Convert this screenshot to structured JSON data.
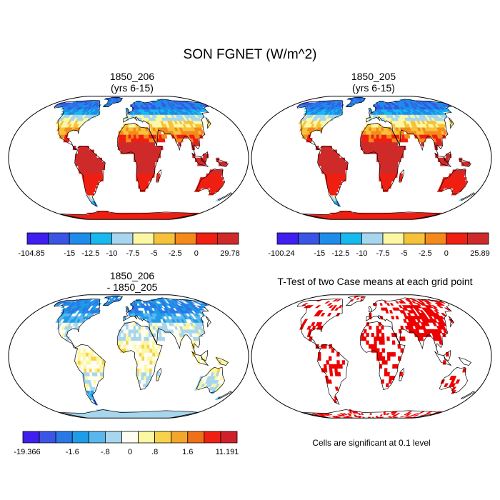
{
  "title": "SON FGNET (W/m^2)",
  "panels": [
    {
      "id": "p1",
      "title_line1": "1850_206",
      "title_line2": "(yrs 6-15)",
      "kind": "mean"
    },
    {
      "id": "p2",
      "title_line1": "1850_205",
      "title_line2": "(yrs 6-15)",
      "kind": "mean"
    },
    {
      "id": "p3",
      "title_line1": "1850_206",
      "title_line2": "- 1850_205",
      "kind": "diff"
    },
    {
      "id": "p4",
      "title_line1": "T-Test of two Case means at each grid point",
      "title_line2": "",
      "kind": "ttest"
    }
  ],
  "colorbars": {
    "mean1": {
      "colors": [
        "#3f1ff0",
        "#3a55e6",
        "#1e8ce8",
        "#17b9ef",
        "#a7d6ee",
        "#fbf7a3",
        "#f7c23b",
        "#f48a1c",
        "#ef1f12",
        "#cf2a2a"
      ],
      "labels": [
        "-104.85",
        "-15",
        "-12.5",
        "-10",
        "-7.5",
        "-5",
        "-2.5",
        "0",
        "29.78"
      ]
    },
    "mean2": {
      "colors": [
        "#3f1ff0",
        "#3a55e6",
        "#1e8ce8",
        "#17b9ef",
        "#a7d6ee",
        "#fbf7a3",
        "#f7c23b",
        "#f48a1c",
        "#ef1f12",
        "#cf2a2a"
      ],
      "labels": [
        "-100.24",
        "-15",
        "-12.5",
        "-10",
        "-7.5",
        "-5",
        "-2.5",
        "0",
        "25.89"
      ]
    },
    "diff": {
      "colors": [
        "#3f1ff0",
        "#3a55e6",
        "#2a78e6",
        "#1e9ce8",
        "#5ab7ee",
        "#a7d6ee",
        "#fffdf2",
        "#fbf7a3",
        "#f7d24a",
        "#f4a62a",
        "#f07018",
        "#ef1f12",
        "#d0202a"
      ],
      "labels": [
        "-19.366",
        "-1.6",
        "-.8",
        "0",
        ".8",
        "1.6",
        "11.191"
      ]
    }
  },
  "note": "Cells are significant at 0.1 level",
  "map_colors": {
    "ocean": "#ffffff",
    "coast": "#000000",
    "ttest_sig": "#ee0000"
  }
}
